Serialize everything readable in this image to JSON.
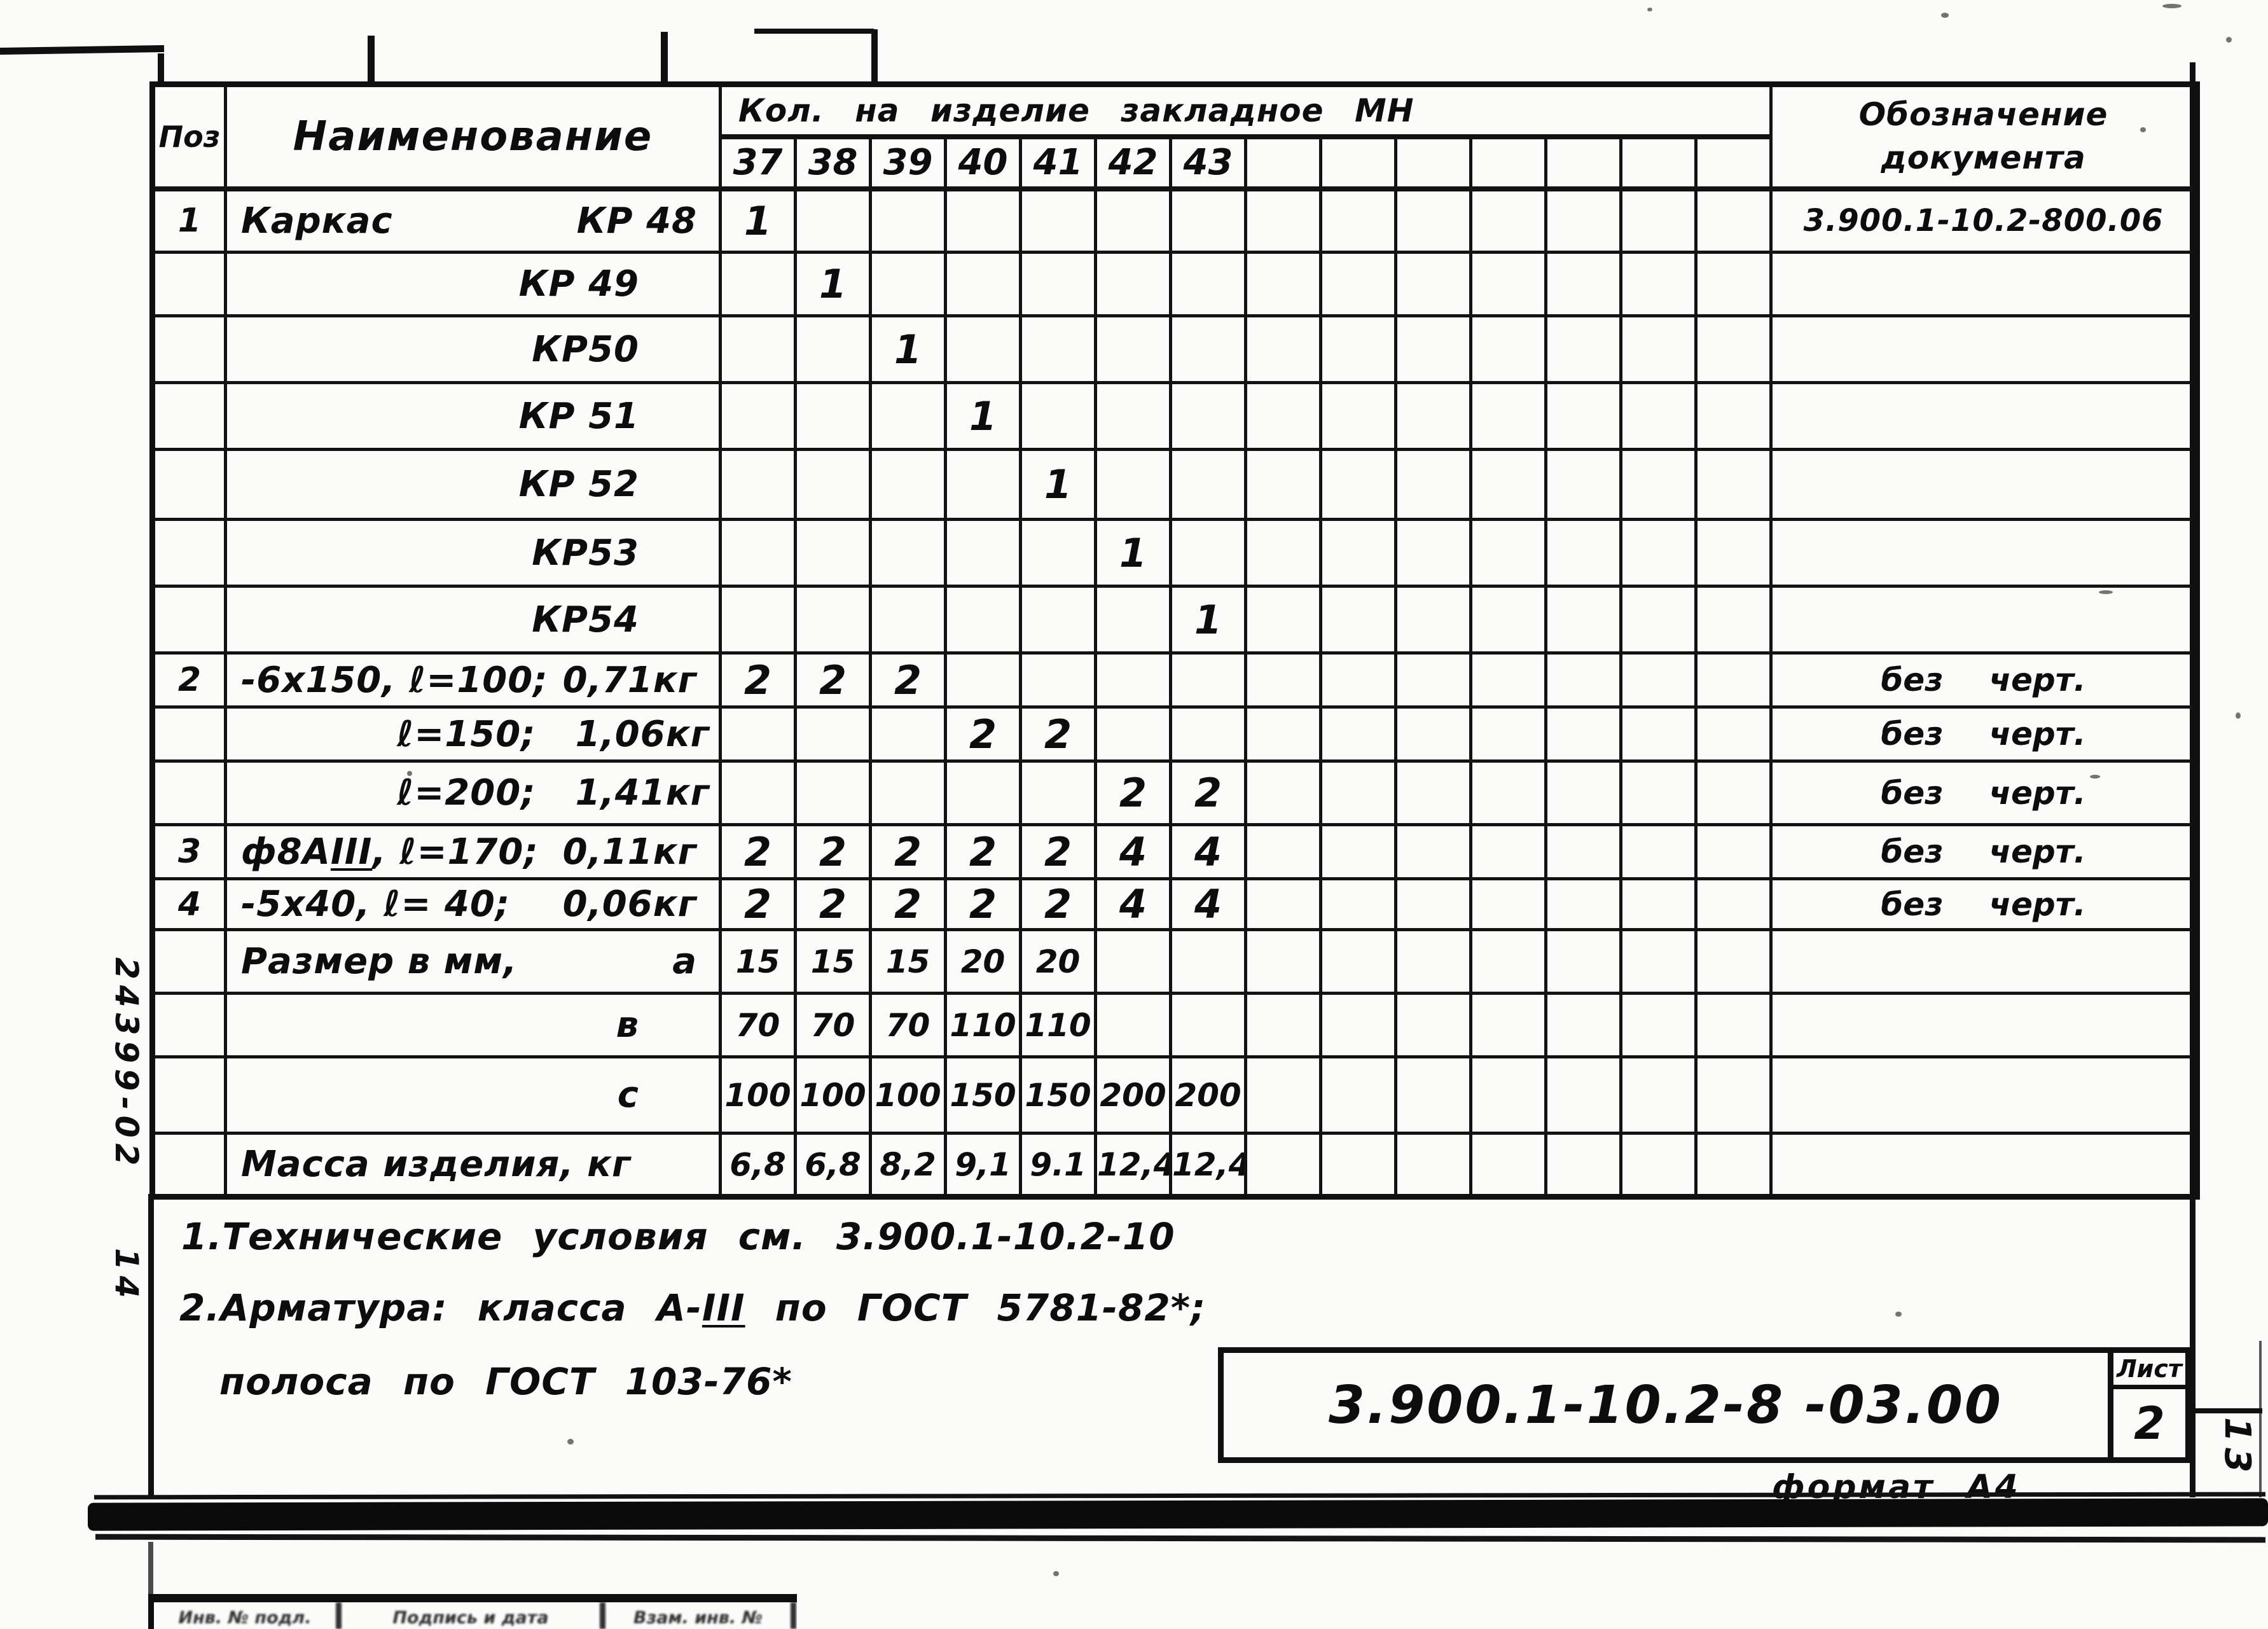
{
  "page": {
    "inventory_number": "24399-02",
    "inventory_number_2": "14",
    "right_page_number": "13"
  },
  "table": {
    "headers": {
      "pos": "Поз",
      "name": "Наименование",
      "qty_group": "Кол. на изделие закладное МН",
      "qty_cols": [
        "37",
        "38",
        "39",
        "40",
        "41",
        "42",
        "43",
        "",
        "",
        "",
        "",
        "",
        "",
        ""
      ],
      "doc_line1": "Обозначение",
      "doc_line2": "документа"
    },
    "rows": [
      {
        "pos": "1",
        "name_left": [
          {
            "t": "Каркас"
          }
        ],
        "name_right": "КР 48",
        "qty": [
          "1",
          "",
          "",
          "",
          "",
          "",
          "",
          "",
          "",
          "",
          "",
          "",
          "",
          ""
        ],
        "doc": "3.900.1-10.2-800.06"
      },
      {
        "pos": "",
        "name_right": "КР 49",
        "qty": [
          "",
          "1",
          "",
          "",
          "",
          "",
          "",
          "",
          "",
          "",
          "",
          "",
          "",
          ""
        ],
        "doc": ""
      },
      {
        "pos": "",
        "name_right": "КР50",
        "qty": [
          "",
          "",
          "1",
          "",
          "",
          "",
          "",
          "",
          "",
          "",
          "",
          "",
          "",
          ""
        ],
        "doc": ""
      },
      {
        "pos": "",
        "name_right": "КР 51",
        "qty": [
          "",
          "",
          "",
          "1",
          "",
          "",
          "",
          "",
          "",
          "",
          "",
          "",
          "",
          ""
        ],
        "doc": ""
      },
      {
        "pos": "",
        "name_right": "КР 52",
        "qty": [
          "",
          "",
          "",
          "",
          "1",
          "",
          "",
          "",
          "",
          "",
          "",
          "",
          "",
          ""
        ],
        "doc": ""
      },
      {
        "pos": "",
        "name_right": "КР53",
        "qty": [
          "",
          "",
          "",
          "",
          "",
          "1",
          "",
          "",
          "",
          "",
          "",
          "",
          "",
          ""
        ],
        "doc": ""
      },
      {
        "pos": "",
        "name_right": "КР54",
        "qty": [
          "",
          "",
          "",
          "",
          "",
          "",
          "1",
          "",
          "",
          "",
          "",
          "",
          "",
          ""
        ],
        "doc": ""
      },
      {
        "pos": "2",
        "name_left": [
          {
            "t": "-6х150, ℓ=100;"
          }
        ],
        "name_right": "0,71кг",
        "qty": [
          "2",
          "2",
          "2",
          "",
          "",
          "",
          "",
          "",
          "",
          "",
          "",
          "",
          "",
          ""
        ],
        "doc": "без черт."
      },
      {
        "pos": "",
        "name_mid": "ℓ=150;",
        "name_right": "1,06кг",
        "qty": [
          "",
          "",
          "",
          "2",
          "2",
          "",
          "",
          "",
          "",
          "",
          "",
          "",
          "",
          ""
        ],
        "doc": "без черт."
      },
      {
        "pos": "",
        "name_mid": "ℓ=200;",
        "name_right": "1,41кг",
        "qty": [
          "",
          "",
          "",
          "",
          "",
          "2",
          "2",
          "",
          "",
          "",
          "",
          "",
          "",
          ""
        ],
        "doc": "без черт."
      },
      {
        "pos": "3",
        "name_left": [
          {
            "t": "ф8А"
          },
          {
            "t": "III",
            "u": true
          },
          {
            "t": ", ℓ=170;"
          }
        ],
        "name_right": "0,11кг",
        "qty": [
          "2",
          "2",
          "2",
          "2",
          "2",
          "4",
          "4",
          "",
          "",
          "",
          "",
          "",
          "",
          ""
        ],
        "doc": "без черт."
      },
      {
        "pos": "4",
        "name_left": [
          {
            "t": "-5х40, ℓ= 40;"
          }
        ],
        "name_right": "0,06кг",
        "qty": [
          "2",
          "2",
          "2",
          "2",
          "2",
          "4",
          "4",
          "",
          "",
          "",
          "",
          "",
          "",
          ""
        ],
        "doc": "без черт."
      },
      {
        "pos": "",
        "name_left": [
          {
            "t": "Размер в мм,"
          }
        ],
        "name_right": "а",
        "qty": [
          "15",
          "15",
          "15",
          "20",
          "20",
          "",
          "",
          "",
          "",
          "",
          "",
          "",
          "",
          ""
        ],
        "doc": ""
      },
      {
        "pos": "",
        "name_right": "в",
        "qty": [
          "70",
          "70",
          "70",
          "110",
          "110",
          "",
          "",
          "",
          "",
          "",
          "",
          "",
          "",
          ""
        ],
        "doc": ""
      },
      {
        "pos": "",
        "name_right": "с",
        "qty": [
          "100",
          "100",
          "100",
          "150",
          "150",
          "200",
          "200",
          "",
          "",
          "",
          "",
          "",
          "",
          ""
        ],
        "doc": ""
      },
      {
        "pos": "",
        "name_left": [
          {
            "t": "Масса изделия, кг"
          }
        ],
        "qty": [
          "6,8",
          "6,8",
          "8,2",
          "9,1",
          "9.1",
          "12,4",
          "12,4",
          "",
          "",
          "",
          "",
          "",
          "",
          ""
        ],
        "doc": ""
      }
    ]
  },
  "notes": {
    "line1": "1.Технические условия см. 3.900.1-10.2-10",
    "line2_pre": "2.Арматура: класса А-",
    "line2_u": "III",
    "line2_post": " по ГОСТ 5781-82*;",
    "line3": "полоса по ГОСТ 103-76*"
  },
  "title_block": {
    "doc_number": "3.900.1-10.2-8 -03.00",
    "sheet_label": "Лист",
    "sheet_number": "2",
    "format_label": "формат А4"
  },
  "stamp_strip": {
    "cells": [
      "Инв. № подл.",
      "Подпись и дата",
      "Взам. инв. №"
    ]
  }
}
